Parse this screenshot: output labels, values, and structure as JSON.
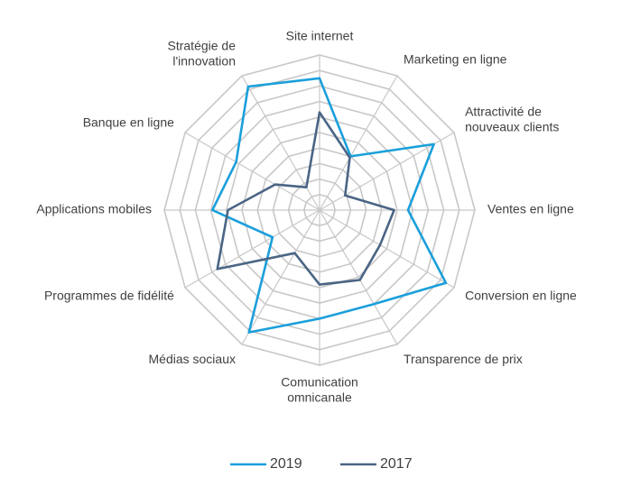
{
  "chart_data": {
    "type": "radar",
    "categories": [
      "Site internet",
      "Marketing en ligne",
      "Attractivité de\nnouveaux clients",
      "Ventes en ligne",
      "Conversion en ligne",
      "Transparence de prix",
      "Comunication\nomnicanale",
      "Médias sociaux",
      "Programmes de fidélité",
      "Applications mobiles",
      "Banque en ligne",
      "Stratégie de\nl'innovation"
    ],
    "series": [
      {
        "name": "2019",
        "color": "#1a9fdb",
        "values": [
          8.5,
          4.0,
          8.5,
          5.7,
          9.4,
          7.0,
          7.0,
          9.1,
          3.5,
          6.9,
          6.2,
          9.2
        ]
      },
      {
        "name": "2017",
        "color": "#4a6585",
        "values": [
          6.3,
          3.9,
          1.9,
          4.8,
          4.5,
          5.2,
          4.8,
          3.2,
          7.6,
          5.9,
          3.3,
          1.7
        ]
      }
    ],
    "ylim": [
      0,
      10
    ],
    "yticks": [
      1,
      2,
      3,
      4,
      5,
      6,
      7,
      8,
      9,
      10
    ],
    "grid": true,
    "legend": "bottom"
  }
}
